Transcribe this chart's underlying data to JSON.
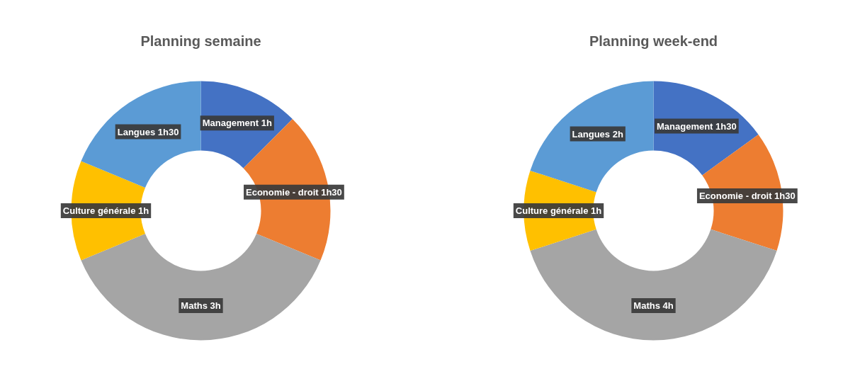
{
  "chart_data": [
    {
      "type": "donut",
      "title": "Planning semaine",
      "categories": [
        "Management",
        "Economie - droit",
        "Maths",
        "Culture générale",
        "Langues"
      ],
      "values": [
        1,
        1.5,
        3,
        1,
        1.5
      ],
      "value_labels": [
        "1h",
        "1h30",
        "3h",
        "1h",
        "1h30"
      ],
      "colors": [
        "#4472c4",
        "#ed7d31",
        "#a5a5a5",
        "#ffc000",
        "#5b9bd5"
      ]
    },
    {
      "type": "donut",
      "title": "Planning week-end",
      "categories": [
        "Management",
        "Economie - droit",
        "Maths",
        "Culture générale",
        "Langues"
      ],
      "values": [
        1.5,
        1.5,
        4,
        1,
        2
      ],
      "value_labels": [
        "1h30",
        "1h30",
        "4h",
        "1h",
        "2h"
      ],
      "colors": [
        "#4472c4",
        "#ed7d31",
        "#a5a5a5",
        "#ffc000",
        "#5b9bd5"
      ]
    }
  ]
}
